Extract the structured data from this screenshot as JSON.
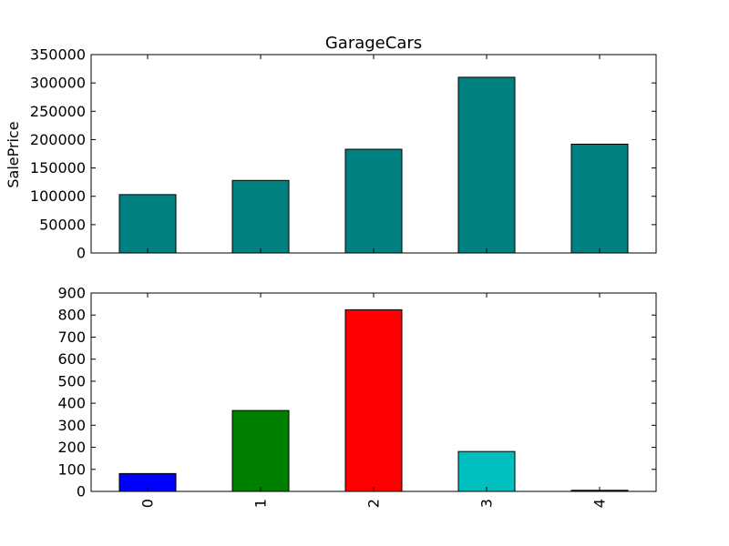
{
  "chart_data": [
    {
      "type": "bar",
      "title": "GarageCars",
      "xlabel": "",
      "ylabel": "SalePrice",
      "categories": [
        "0",
        "1",
        "2",
        "3",
        "4"
      ],
      "values": [
        103000,
        128000,
        183000,
        310000,
        192000
      ],
      "ylim": [
        0,
        350000
      ],
      "yticks": [
        "0",
        "50000",
        "100000",
        "150000",
        "200000",
        "250000",
        "300000",
        "350000"
      ],
      "show_x_tick_labels": false,
      "grid": false,
      "colors": [
        "#008080",
        "#008080",
        "#008080",
        "#008080",
        "#008080"
      ]
    },
    {
      "type": "bar",
      "title": "",
      "xlabel": "",
      "ylabel": "",
      "categories": [
        "0",
        "1",
        "2",
        "3",
        "4"
      ],
      "values": [
        81,
        367,
        824,
        181,
        5
      ],
      "ylim": [
        0,
        900
      ],
      "yticks": [
        "0",
        "100",
        "200",
        "300",
        "400",
        "500",
        "600",
        "700",
        "800",
        "900"
      ],
      "show_x_tick_labels": true,
      "x_tick_rotation": "vertical",
      "grid": false,
      "colors": [
        "#0000ff",
        "#008000",
        "#ff0000",
        "#00bfbf",
        "#000000"
      ]
    }
  ]
}
